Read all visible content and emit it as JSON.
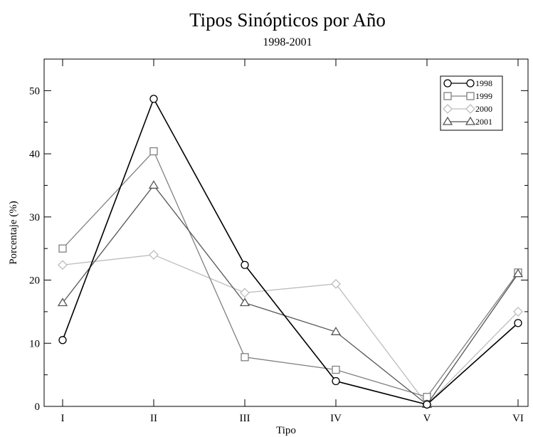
{
  "chart_data": {
    "type": "line",
    "title": "Tipos Sinópticos por Año",
    "subtitle": "1998-2001",
    "xlabel": "Tipo",
    "ylabel": "Porcentaje (%)",
    "categories": [
      "I",
      "II",
      "III",
      "IV",
      "V",
      "VI"
    ],
    "ylim": [
      0,
      55
    ],
    "yticks": [
      0,
      10,
      20,
      30,
      40,
      50
    ],
    "ytick_labels": [
      "0",
      "10",
      "20",
      "30",
      "40",
      "50"
    ],
    "grid": false,
    "legend_position": "top-right",
    "series": [
      {
        "name": "1998",
        "values": [
          10.5,
          48.7,
          22.4,
          4.0,
          0.3,
          13.2
        ],
        "color": "#000000",
        "marker": "circle"
      },
      {
        "name": "1999",
        "values": [
          25.0,
          40.4,
          7.8,
          5.8,
          1.5,
          21.2
        ],
        "color": "#808080",
        "marker": "square"
      },
      {
        "name": "2000",
        "values": [
          22.4,
          24.0,
          18.0,
          19.4,
          0.3,
          15.0
        ],
        "color": "#bdbdbd",
        "marker": "diamond"
      },
      {
        "name": "2001",
        "values": [
          16.4,
          35.0,
          16.4,
          11.8,
          0.3,
          21.0
        ],
        "color": "#555555",
        "marker": "triangle"
      }
    ]
  }
}
